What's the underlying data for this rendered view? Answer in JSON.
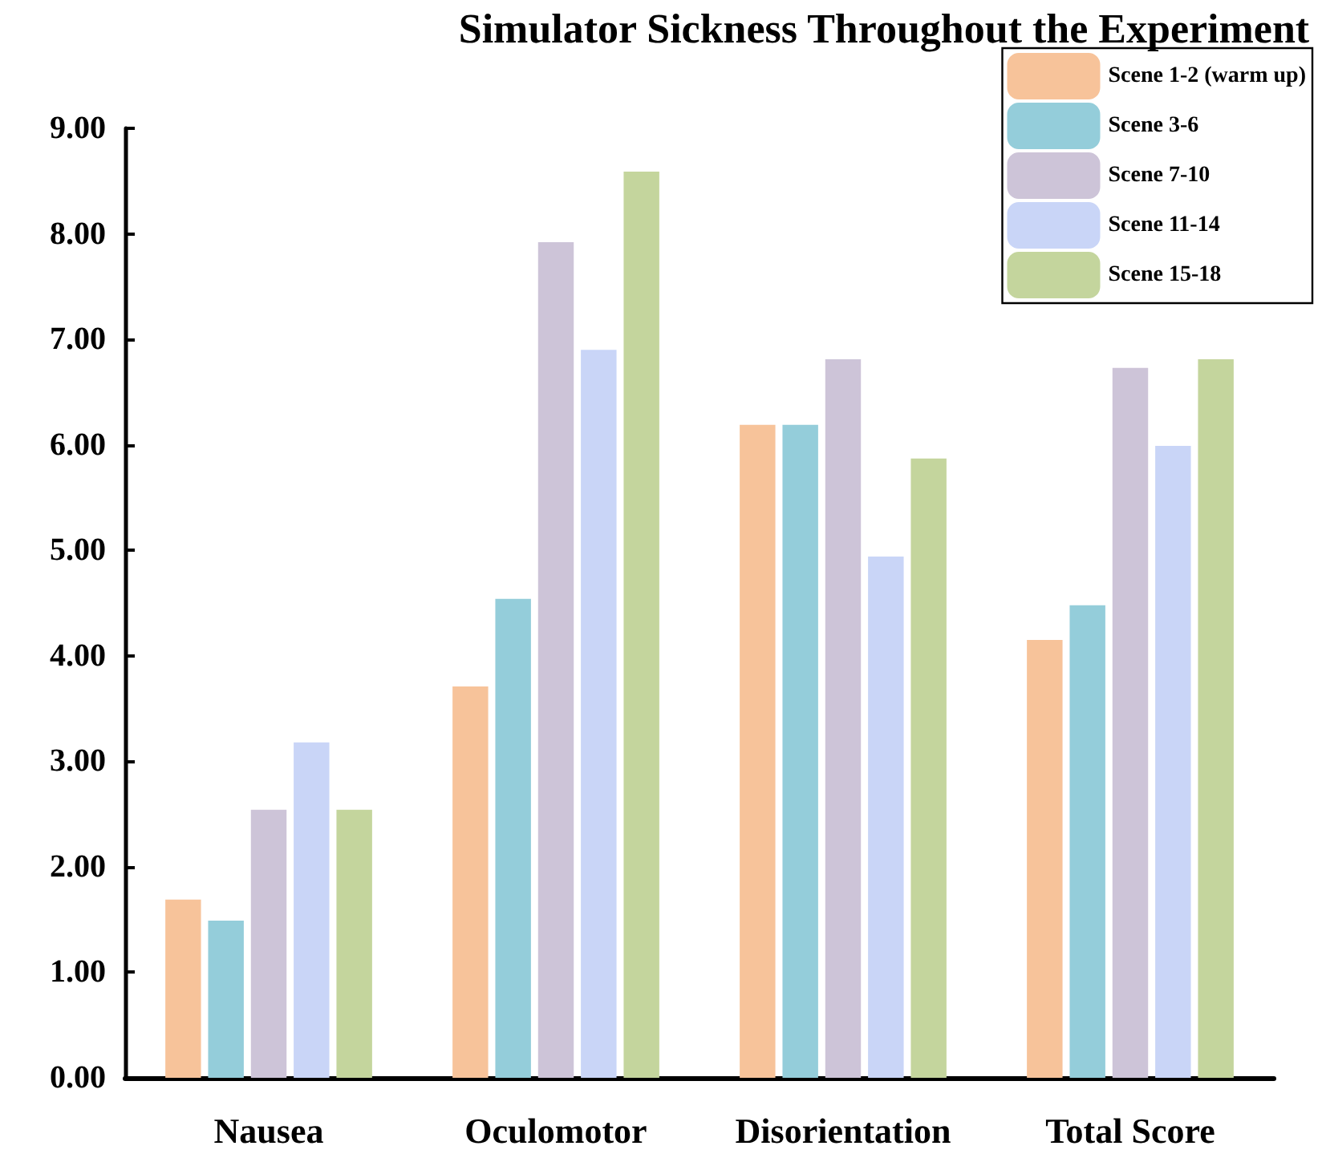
{
  "chart_data": {
    "type": "bar",
    "title": "Simulator Sickness Throughout the Experiment",
    "categories": [
      "Nausea",
      "Oculomotor",
      "Disorientation",
      "Total Score"
    ],
    "series": [
      {
        "name": "Scene 1-2 (warm up)",
        "color": "#f7c39a",
        "values": [
          1.69,
          3.71,
          6.19,
          4.15
        ]
      },
      {
        "name": "Scene 3-6",
        "color": "#94cdda",
        "values": [
          1.49,
          4.54,
          6.19,
          4.48
        ]
      },
      {
        "name": "Scene 7-10",
        "color": "#cdc4d8",
        "values": [
          2.54,
          7.92,
          6.81,
          6.73
        ]
      },
      {
        "name": "Scene 11-14",
        "color": "#c9d5f7",
        "values": [
          3.18,
          6.9,
          4.94,
          5.99
        ]
      },
      {
        "name": "Scene 15-18",
        "color": "#c4d59d",
        "values": [
          2.54,
          8.59,
          5.87,
          6.81
        ]
      }
    ],
    "ylim": [
      0,
      9
    ],
    "yticks": [
      {
        "value": 0,
        "label": "0.00"
      },
      {
        "value": 1,
        "label": "1.00"
      },
      {
        "value": 2,
        "label": "2.00"
      },
      {
        "value": 3,
        "label": "3.00"
      },
      {
        "value": 4,
        "label": "4.00"
      },
      {
        "value": 5,
        "label": "5.00"
      },
      {
        "value": 6,
        "label": "6.00"
      },
      {
        "value": 7,
        "label": "7.00"
      },
      {
        "value": 8,
        "label": "8.00"
      },
      {
        "value": 9,
        "label": "9.00"
      }
    ],
    "grid": false,
    "legend": "top right"
  }
}
